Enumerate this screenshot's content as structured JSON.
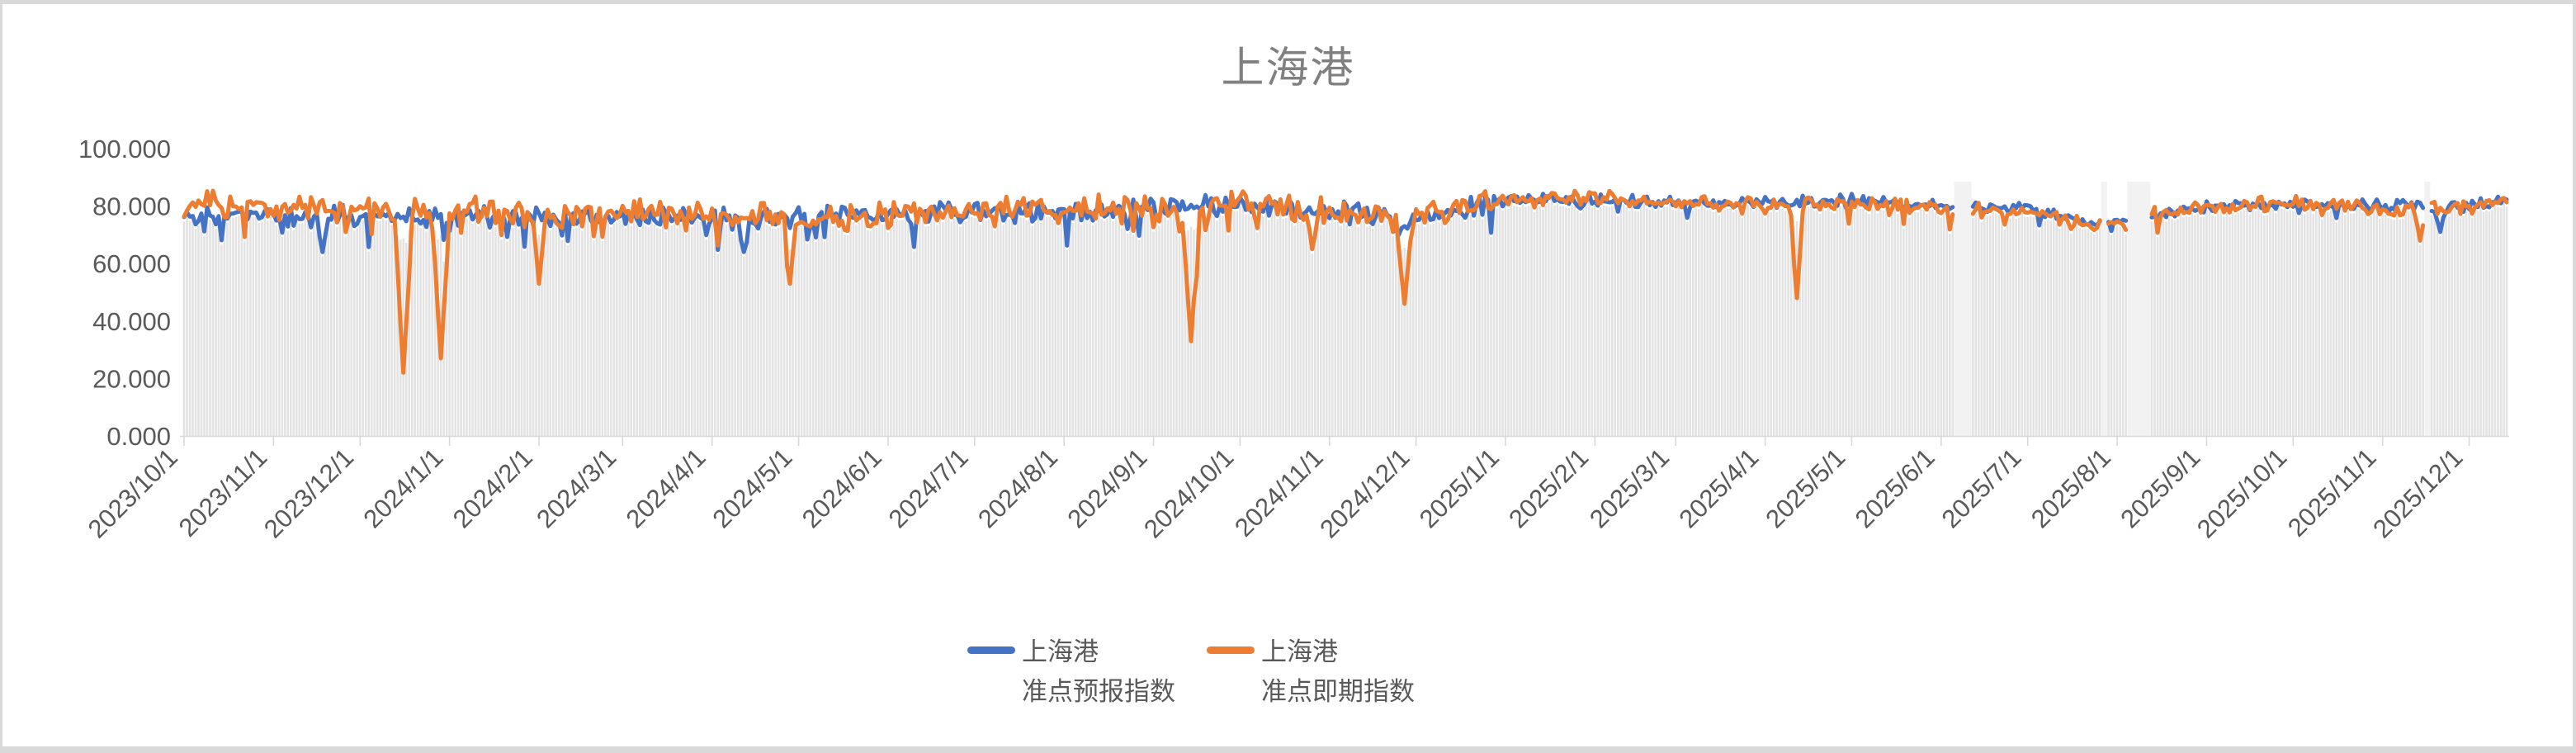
{
  "frame": {
    "background": "#d9d9d9",
    "card_background": "#ffffff"
  },
  "chart_data": {
    "type": "line",
    "title": "上海港",
    "title_color": "#808080",
    "grid": false,
    "legend_position": "bottom-center",
    "x_axis": {
      "start_date": "2023-10-01",
      "end_date": "2025-12-14",
      "label_rotation_deg": -45,
      "tick_labels": [
        "2023/10/1",
        "2023/11/1",
        "2023/12/1",
        "2024/1/1",
        "2024/2/1",
        "2024/3/1",
        "2024/4/1",
        "2024/5/1",
        "2024/6/1",
        "2024/7/1",
        "2024/8/1",
        "2024/9/1",
        "2024/10/1",
        "2024/11/1",
        "2024/12/1",
        "2025/1/1",
        "2025/2/1",
        "2025/3/1",
        "2025/4/1",
        "2025/5/1",
        "2025/6/1",
        "2025/7/1",
        "2025/8/1",
        "2025/9/1",
        "2025/10/1",
        "2025/11/1",
        "2025/12/1"
      ]
    },
    "y_axis": {
      "min": 0,
      "max": 100,
      "step": 20,
      "tick_labels": [
        "0.000",
        "20.000",
        "40.000",
        "60.000",
        "80.000",
        "100.000"
      ]
    },
    "data_gaps": [
      [
        "2025-06-06",
        "2025-06-11"
      ],
      [
        "2025-07-27",
        "2025-07-28"
      ],
      [
        "2025-08-05",
        "2025-08-12"
      ],
      [
        "2025-11-16",
        "2025-11-17"
      ]
    ],
    "series": [
      {
        "name": "上海港 准点预报指数",
        "legend_lines": [
          "上海港",
          "准点预报指数"
        ],
        "color": "#4472C4",
        "noise_amp_early": 4.6,
        "noise_amp_2025": 2.6,
        "anchors": [
          [
            "2023-10-01",
            76
          ],
          [
            "2023-11-01",
            77
          ],
          [
            "2023-12-01",
            76
          ],
          [
            "2024-01-01",
            77
          ],
          [
            "2024-02-01",
            76
          ],
          [
            "2024-03-01",
            77
          ],
          [
            "2024-04-01",
            75
          ],
          [
            "2024-05-01",
            76
          ],
          [
            "2024-06-01",
            77
          ],
          [
            "2024-07-01",
            78
          ],
          [
            "2024-08-01",
            78
          ],
          [
            "2024-09-01",
            79
          ],
          [
            "2024-10-01",
            80
          ],
          [
            "2024-11-01",
            78
          ],
          [
            "2024-12-01",
            76
          ],
          [
            "2025-01-01",
            82
          ],
          [
            "2025-02-01",
            82
          ],
          [
            "2025-03-01",
            81
          ],
          [
            "2025-04-01",
            81
          ],
          [
            "2025-05-01",
            82
          ],
          [
            "2025-06-01",
            80
          ],
          [
            "2025-07-01",
            79
          ],
          [
            "2025-07-25",
            74
          ],
          [
            "2025-08-03",
            75
          ],
          [
            "2025-08-13",
            77
          ],
          [
            "2025-09-01",
            80
          ],
          [
            "2025-10-01",
            81
          ],
          [
            "2025-11-01",
            80
          ],
          [
            "2025-12-01",
            80
          ],
          [
            "2025-12-14",
            82
          ]
        ],
        "dips": [
          {
            "date": "2023-11-18",
            "value": 64,
            "width": 2
          },
          {
            "date": "2024-04-12",
            "value": 64,
            "width": 2
          },
          {
            "date": "2024-11-25",
            "value": 70,
            "width": 3
          },
          {
            "date": "2025-11-21",
            "value": 71,
            "width": 2
          }
        ]
      },
      {
        "name": "上海港 准点即期指数",
        "legend_lines": [
          "上海港",
          "准点即期指数"
        ],
        "color": "#ED7D31",
        "noise_amp_early": 5.5,
        "noise_amp_2025": 3.0,
        "anchors": [
          [
            "2023-10-01",
            81
          ],
          [
            "2023-11-01",
            80
          ],
          [
            "2023-12-01",
            79
          ],
          [
            "2024-01-01",
            79
          ],
          [
            "2024-02-01",
            77
          ],
          [
            "2024-03-01",
            78
          ],
          [
            "2024-04-01",
            76
          ],
          [
            "2024-05-01",
            76
          ],
          [
            "2024-06-01",
            77
          ],
          [
            "2024-07-01",
            79
          ],
          [
            "2024-08-01",
            79
          ],
          [
            "2024-09-01",
            79
          ],
          [
            "2024-10-01",
            81
          ],
          [
            "2024-11-01",
            79
          ],
          [
            "2024-12-01",
            77
          ],
          [
            "2025-01-01",
            82
          ],
          [
            "2025-02-01",
            83
          ],
          [
            "2025-03-01",
            81
          ],
          [
            "2025-04-01",
            80
          ],
          [
            "2025-05-01",
            81
          ],
          [
            "2025-06-01",
            79
          ],
          [
            "2025-07-01",
            78
          ],
          [
            "2025-07-25",
            73
          ],
          [
            "2025-08-03",
            74
          ],
          [
            "2025-08-13",
            77
          ],
          [
            "2025-09-01",
            80
          ],
          [
            "2025-10-01",
            81
          ],
          [
            "2025-11-01",
            79
          ],
          [
            "2025-12-01",
            80
          ],
          [
            "2025-12-14",
            82
          ]
        ],
        "dips": [
          {
            "date": "2023-12-16",
            "value": 22,
            "width": 3
          },
          {
            "date": "2023-12-29",
            "value": 27,
            "width": 3
          },
          {
            "date": "2024-02-01",
            "value": 53,
            "width": 2
          },
          {
            "date": "2024-04-28",
            "value": 53,
            "width": 2
          },
          {
            "date": "2024-09-14",
            "value": 33,
            "width": 3
          },
          {
            "date": "2024-10-26",
            "value": 65,
            "width": 2
          },
          {
            "date": "2024-11-27",
            "value": 46,
            "width": 3
          },
          {
            "date": "2025-04-12",
            "value": 48,
            "width": 2
          },
          {
            "date": "2025-11-14",
            "value": 68,
            "width": 2
          }
        ]
      }
    ],
    "plot_style": {
      "bar_color": "#e3e3e3",
      "gap_fill": "#f2f2f2",
      "axis_color": "#d9d9d9",
      "tick_text_color": "#595959"
    }
  }
}
